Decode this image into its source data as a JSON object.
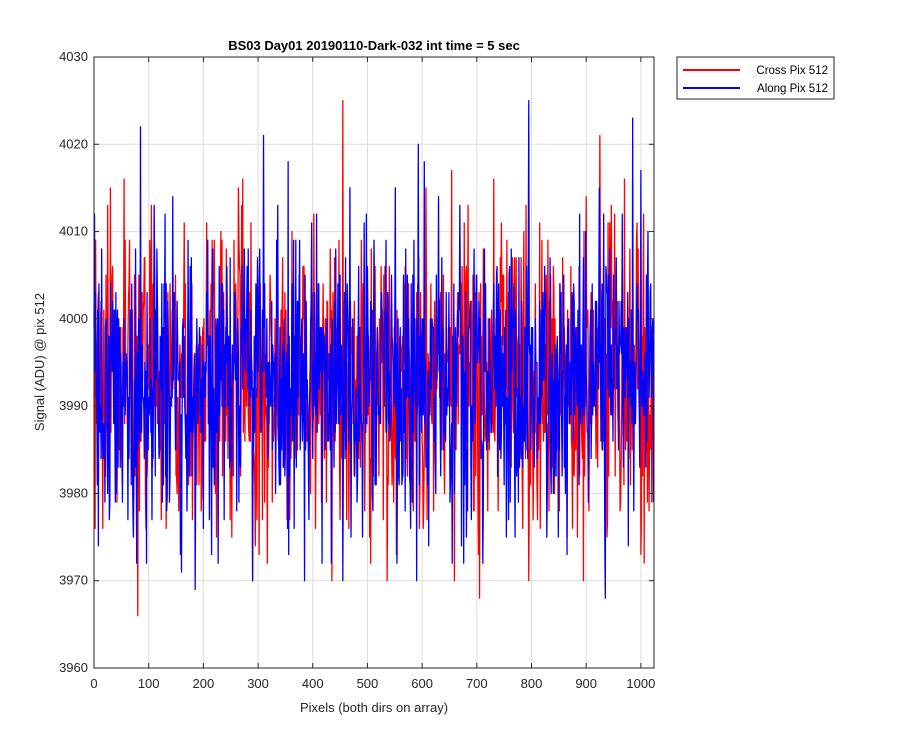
{
  "chart_data": {
    "type": "line",
    "title": "BS03 Day01 20190110-Dark-032 int time = 5 sec",
    "xlabel": "Pixels (both dirs on array)",
    "ylabel": "Signal (ADU) @ pix 512",
    "xlim": [
      0,
      1024
    ],
    "ylim": [
      3960,
      4030
    ],
    "xticks": [
      0,
      100,
      200,
      300,
      400,
      500,
      600,
      700,
      800,
      900,
      1000
    ],
    "yticks": [
      3960,
      3970,
      3980,
      3990,
      4000,
      4010,
      4020,
      4030
    ],
    "grid": true,
    "legend_position": "outside-top-right",
    "n_points": 1024,
    "series": [
      {
        "name": "Cross Pix 512",
        "color": "#ff0000",
        "mean": 3993,
        "range": [
          3966,
          4025
        ],
        "notable_points": [
          {
            "x": 2,
            "y": 3976
          },
          {
            "x": 25,
            "y": 4013
          },
          {
            "x": 30,
            "y": 4015
          },
          {
            "x": 55,
            "y": 4016
          },
          {
            "x": 80,
            "y": 3966
          },
          {
            "x": 95,
            "y": 3976
          },
          {
            "x": 165,
            "y": 4011
          },
          {
            "x": 302,
            "y": 3973
          },
          {
            "x": 455,
            "y": 4025
          },
          {
            "x": 705,
            "y": 3968
          },
          {
            "x": 795,
            "y": 3970
          },
          {
            "x": 895,
            "y": 3970
          },
          {
            "x": 925,
            "y": 4021
          },
          {
            "x": 1000,
            "y": 3973
          }
        ]
      },
      {
        "name": "Along Pix 512",
        "color": "#0000ff",
        "mean": 3993,
        "range": [
          3968,
          4025
        ],
        "notable_points": [
          {
            "x": 85,
            "y": 4022
          },
          {
            "x": 160,
            "y": 3971
          },
          {
            "x": 185,
            "y": 3969
          },
          {
            "x": 310,
            "y": 4021
          },
          {
            "x": 290,
            "y": 3970
          },
          {
            "x": 355,
            "y": 4018
          },
          {
            "x": 385,
            "y": 3970
          },
          {
            "x": 455,
            "y": 3970
          },
          {
            "x": 590,
            "y": 3970
          },
          {
            "x": 655,
            "y": 3972
          },
          {
            "x": 795,
            "y": 4025
          },
          {
            "x": 935,
            "y": 3968
          },
          {
            "x": 985,
            "y": 4023
          },
          {
            "x": 1000,
            "y": 4017
          }
        ]
      }
    ]
  }
}
